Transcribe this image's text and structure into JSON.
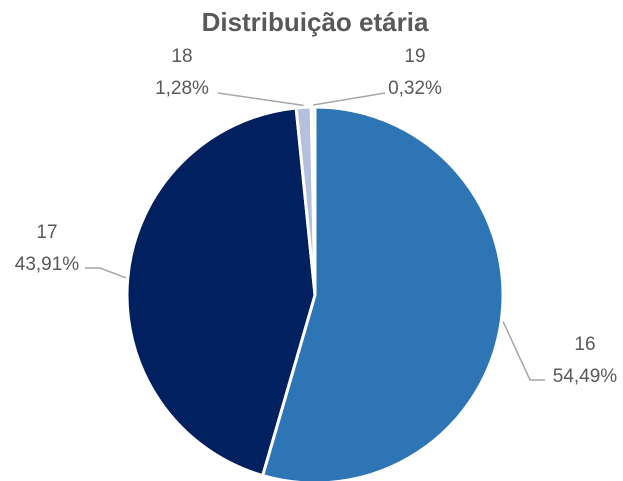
{
  "chart_data": {
    "type": "pie",
    "title": "Distribuição etária",
    "categories": [
      "16",
      "17",
      "18",
      "19"
    ],
    "values": [
      54.49,
      43.91,
      1.28,
      0.32
    ],
    "value_labels": [
      "54,49%",
      "43,91%",
      "1,28%",
      "0,32%"
    ],
    "colors": [
      "#2e75b6",
      "#002060",
      "#b4c0dc",
      "#dde4f0"
    ]
  }
}
